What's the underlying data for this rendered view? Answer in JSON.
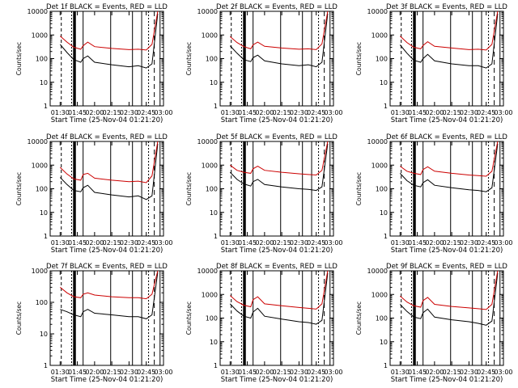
{
  "figure": {
    "background": "#ffffff",
    "colors": {
      "events": "#000000",
      "lld": "#cc0000",
      "axes": "#000000"
    }
  },
  "axes_common": {
    "ylabel": "Counts/sec",
    "xlabel": "Start Time (25-Nov-04 01:21:20)",
    "yticklabels": [
      "1",
      "10",
      "100",
      "1000",
      "10000"
    ],
    "xticklabels": [
      "01:30",
      "01:45",
      "02:00",
      "02:15",
      "02:30",
      "02:45",
      "03:00"
    ]
  },
  "chart_data": [
    {
      "type": "line",
      "title": "Det 1f BLACK = Events, RED = LLD",
      "xlabel": "Start Time (25-Nov-04 01:21:20)",
      "ylabel": "Counts/sec",
      "yscale": "log",
      "ylim": [
        1,
        10000
      ],
      "xlim": [
        "01:21:20",
        "03:00:00"
      ],
      "series": [
        {
          "name": "Events",
          "color": "#000000",
          "x": [
            "01:30",
            "01:36",
            "01:42",
            "01:48",
            "01:50",
            "01:54",
            "02:00",
            "02:15",
            "02:30",
            "02:38",
            "02:45",
            "02:50",
            "02:55"
          ],
          "values": [
            400,
            180,
            90,
            70,
            100,
            130,
            70,
            55,
            45,
            50,
            40,
            60,
            8000
          ]
        },
        {
          "name": "LLD",
          "color": "#cc0000",
          "x": [
            "01:30",
            "01:36",
            "01:42",
            "01:48",
            "01:50",
            "01:54",
            "02:00",
            "02:15",
            "02:30",
            "02:38",
            "02:45",
            "02:50",
            "02:55"
          ],
          "values": [
            900,
            500,
            300,
            250,
            350,
            500,
            320,
            270,
            240,
            250,
            230,
            400,
            10000
          ]
        }
      ]
    },
    {
      "type": "line",
      "title": "Det 2f BLACK = Events, RED = LLD",
      "xlabel": "Start Time (25-Nov-04 01:21:20)",
      "ylabel": "Counts/sec",
      "yscale": "log",
      "ylim": [
        1,
        10000
      ],
      "xlim": [
        "01:21:20",
        "03:00:00"
      ],
      "series": [
        {
          "name": "Events",
          "color": "#000000",
          "x": [
            "01:30",
            "01:36",
            "01:42",
            "01:48",
            "01:50",
            "01:54",
            "02:00",
            "02:15",
            "02:30",
            "02:38",
            "02:45",
            "02:50",
            "02:55"
          ],
          "values": [
            350,
            170,
            90,
            75,
            110,
            140,
            80,
            60,
            50,
            55,
            45,
            70,
            8000
          ]
        },
        {
          "name": "LLD",
          "color": "#cc0000",
          "x": [
            "01:30",
            "01:36",
            "01:42",
            "01:48",
            "01:50",
            "01:54",
            "02:00",
            "02:15",
            "02:30",
            "02:38",
            "02:45",
            "02:50",
            "02:55"
          ],
          "values": [
            850,
            480,
            320,
            260,
            380,
            500,
            330,
            280,
            250,
            260,
            240,
            420,
            10000
          ]
        }
      ]
    },
    {
      "type": "line",
      "title": "Det 3f BLACK = Events, RED = LLD",
      "xlabel": "Start Time (25-Nov-04 01:21:20)",
      "ylabel": "Counts/sec",
      "yscale": "log",
      "ylim": [
        1,
        10000
      ],
      "xlim": [
        "01:21:20",
        "03:00:00"
      ],
      "series": [
        {
          "name": "Events",
          "color": "#000000",
          "x": [
            "01:30",
            "01:36",
            "01:42",
            "01:48",
            "01:50",
            "01:54",
            "02:00",
            "02:15",
            "02:30",
            "02:38",
            "02:45",
            "02:50",
            "02:55"
          ],
          "values": [
            380,
            170,
            85,
            70,
            100,
            150,
            80,
            60,
            50,
            50,
            40,
            60,
            8000
          ]
        },
        {
          "name": "LLD",
          "color": "#cc0000",
          "x": [
            "01:30",
            "01:36",
            "01:42",
            "01:48",
            "01:50",
            "01:54",
            "02:00",
            "02:15",
            "02:30",
            "02:38",
            "02:45",
            "02:50",
            "02:55"
          ],
          "values": [
            900,
            480,
            300,
            260,
            360,
            520,
            330,
            280,
            240,
            250,
            230,
            400,
            10000
          ]
        }
      ]
    },
    {
      "type": "line",
      "title": "Det 4f BLACK = Events, RED = LLD",
      "xlabel": "Start Time (25-Nov-04 01:21:20)",
      "ylabel": "Counts/sec",
      "yscale": "log",
      "ylim": [
        1,
        10000
      ],
      "xlim": [
        "01:21:20",
        "03:00:00"
      ],
      "series": [
        {
          "name": "Events",
          "color": "#000000",
          "x": [
            "01:30",
            "01:36",
            "01:42",
            "01:48",
            "01:50",
            "01:54",
            "02:00",
            "02:15",
            "02:30",
            "02:38",
            "02:45",
            "02:50",
            "02:55"
          ],
          "values": [
            300,
            150,
            85,
            75,
            110,
            140,
            70,
            55,
            45,
            50,
            35,
            50,
            8000
          ]
        },
        {
          "name": "LLD",
          "color": "#cc0000",
          "x": [
            "01:30",
            "01:36",
            "01:42",
            "01:48",
            "01:50",
            "01:54",
            "02:00",
            "02:15",
            "02:30",
            "02:38",
            "02:45",
            "02:50",
            "02:55"
          ],
          "values": [
            800,
            420,
            260,
            230,
            400,
            450,
            280,
            230,
            200,
            210,
            180,
            350,
            10000
          ]
        }
      ]
    },
    {
      "type": "line",
      "title": "Det 5f BLACK = Events, RED = LLD",
      "xlabel": "Start Time (25-Nov-04 01:21:20)",
      "ylabel": "Counts/sec",
      "yscale": "log",
      "ylim": [
        1,
        10000
      ],
      "xlim": [
        "01:21:20",
        "03:00:00"
      ],
      "series": [
        {
          "name": "Events",
          "color": "#000000",
          "x": [
            "01:30",
            "01:36",
            "01:42",
            "01:48",
            "01:50",
            "01:54",
            "02:00",
            "02:15",
            "02:30",
            "02:38",
            "02:45",
            "02:50",
            "02:55"
          ],
          "values": [
            500,
            250,
            160,
            130,
            200,
            250,
            150,
            120,
            100,
            95,
            85,
            120,
            8000
          ]
        },
        {
          "name": "LLD",
          "color": "#cc0000",
          "x": [
            "01:30",
            "01:36",
            "01:42",
            "01:48",
            "01:50",
            "01:54",
            "02:00",
            "02:15",
            "02:30",
            "02:38",
            "02:45",
            "02:50",
            "02:55"
          ],
          "values": [
            1000,
            600,
            500,
            450,
            700,
            900,
            600,
            500,
            430,
            400,
            380,
            600,
            10000
          ]
        }
      ]
    },
    {
      "type": "line",
      "title": "Det 6f BLACK = Events, RED = LLD",
      "xlabel": "Start Time (25-Nov-04 01:21:20)",
      "ylabel": "Counts/sec",
      "yscale": "log",
      "ylim": [
        1,
        10000
      ],
      "xlim": [
        "01:21:20",
        "03:00:00"
      ],
      "series": [
        {
          "name": "Events",
          "color": "#000000",
          "x": [
            "01:30",
            "01:36",
            "01:42",
            "01:48",
            "01:50",
            "01:54",
            "02:00",
            "02:15",
            "02:30",
            "02:38",
            "02:45",
            "02:50",
            "02:55"
          ],
          "values": [
            450,
            220,
            140,
            120,
            180,
            240,
            140,
            110,
            90,
            85,
            75,
            110,
            8000
          ]
        },
        {
          "name": "LLD",
          "color": "#cc0000",
          "x": [
            "01:30",
            "01:36",
            "01:42",
            "01:48",
            "01:50",
            "01:54",
            "02:00",
            "02:15",
            "02:30",
            "02:38",
            "02:45",
            "02:50",
            "02:55"
          ],
          "values": [
            900,
            550,
            450,
            400,
            650,
            850,
            550,
            450,
            380,
            360,
            340,
            550,
            10000
          ]
        }
      ]
    },
    {
      "type": "line",
      "title": "Det 7f BLACK = Events, RED = LLD",
      "xlabel": "Start Time (25-Nov-04 01:21:20)",
      "ylabel": "Counts/sec",
      "yscale": "log",
      "ylim": [
        1,
        1000
      ],
      "xlim": [
        "01:21:20",
        "03:00:00"
      ],
      "series": [
        {
          "name": "Events",
          "color": "#000000",
          "x": [
            "01:30",
            "01:36",
            "01:42",
            "01:48",
            "01:50",
            "01:54",
            "02:00",
            "02:15",
            "02:30",
            "02:38",
            "02:45",
            "02:50",
            "02:55"
          ],
          "values": [
            60,
            50,
            40,
            35,
            50,
            60,
            45,
            40,
            35,
            35,
            30,
            40,
            900
          ]
        },
        {
          "name": "LLD",
          "color": "#cc0000",
          "x": [
            "01:30",
            "01:36",
            "01:42",
            "01:48",
            "01:50",
            "01:54",
            "02:00",
            "02:15",
            "02:30",
            "02:38",
            "02:45",
            "02:50",
            "02:55"
          ],
          "values": [
            300,
            200,
            150,
            140,
            180,
            200,
            170,
            150,
            140,
            140,
            130,
            180,
            1000
          ]
        }
      ]
    },
    {
      "type": "line",
      "title": "Det 8f BLACK = Events, RED = LLD",
      "xlabel": "Start Time (25-Nov-04 01:21:20)",
      "ylabel": "Counts/sec",
      "yscale": "log",
      "ylim": [
        1,
        10000
      ],
      "xlim": [
        "01:21:20",
        "03:00:00"
      ],
      "series": [
        {
          "name": "Events",
          "color": "#000000",
          "x": [
            "01:30",
            "01:36",
            "01:42",
            "01:48",
            "01:50",
            "01:54",
            "02:00",
            "02:15",
            "02:30",
            "02:38",
            "02:45",
            "02:50",
            "02:55"
          ],
          "values": [
            400,
            200,
            120,
            100,
            180,
            260,
            120,
            90,
            70,
            65,
            55,
            80,
            8000
          ]
        },
        {
          "name": "LLD",
          "color": "#cc0000",
          "x": [
            "01:30",
            "01:36",
            "01:42",
            "01:48",
            "01:50",
            "01:54",
            "02:00",
            "02:15",
            "02:30",
            "02:38",
            "02:45",
            "02:50",
            "02:55"
          ],
          "values": [
            900,
            500,
            350,
            300,
            600,
            800,
            400,
            330,
            280,
            260,
            240,
            400,
            10000
          ]
        }
      ]
    },
    {
      "type": "line",
      "title": "Det 9f BLACK = Events, RED = LLD",
      "xlabel": "Start Time (25-Nov-04 01:21:20)",
      "ylabel": "Counts/sec",
      "yscale": "log",
      "ylim": [
        1,
        10000
      ],
      "xlim": [
        "01:21:20",
        "03:00:00"
      ],
      "series": [
        {
          "name": "Events",
          "color": "#000000",
          "x": [
            "01:30",
            "01:36",
            "01:42",
            "01:48",
            "01:50",
            "01:54",
            "02:00",
            "02:15",
            "02:30",
            "02:38",
            "02:45",
            "02:50",
            "02:55"
          ],
          "values": [
            380,
            190,
            110,
            95,
            170,
            240,
            110,
            85,
            70,
            60,
            50,
            75,
            8000
          ]
        },
        {
          "name": "LLD",
          "color": "#cc0000",
          "x": [
            "01:30",
            "01:36",
            "01:42",
            "01:48",
            "01:50",
            "01:54",
            "02:00",
            "02:15",
            "02:30",
            "02:38",
            "02:45",
            "02:50",
            "02:55"
          ],
          "values": [
            850,
            480,
            330,
            290,
            550,
            750,
            380,
            310,
            270,
            250,
            230,
            380,
            10000
          ]
        }
      ]
    }
  ]
}
